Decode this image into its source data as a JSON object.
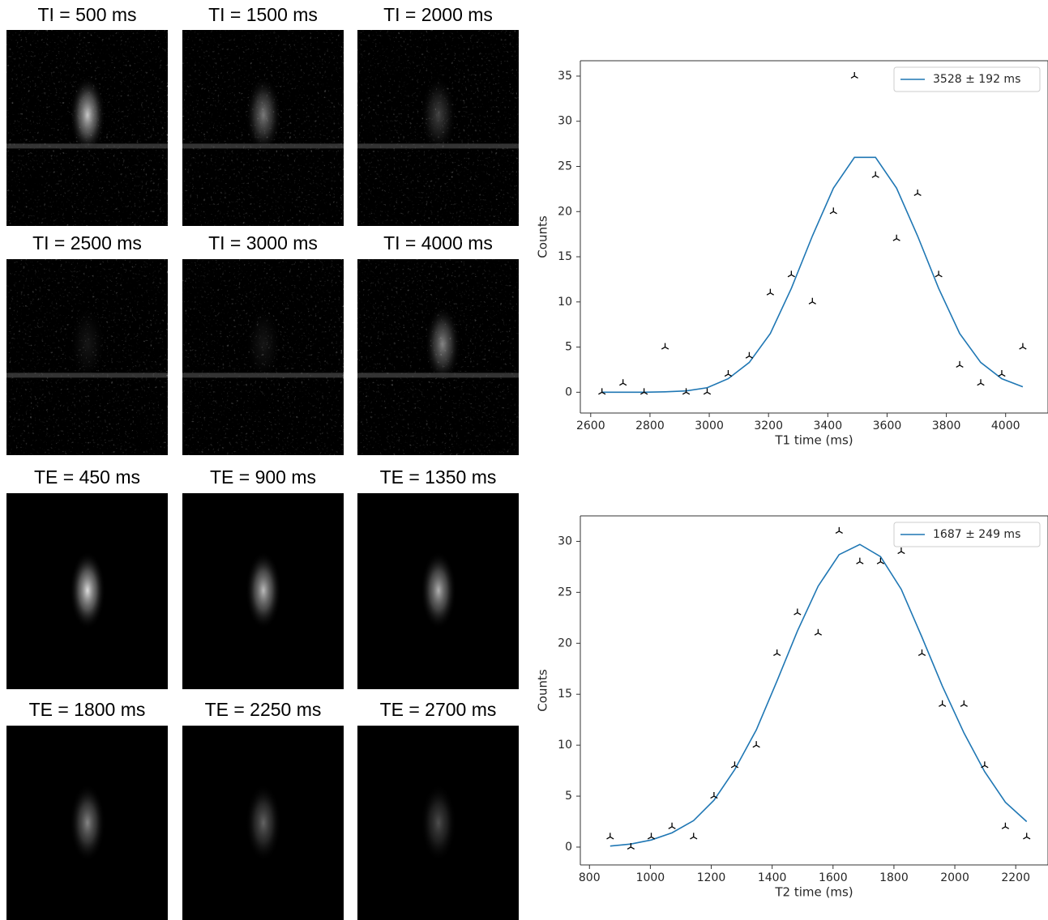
{
  "images": [
    {
      "title": "TI = 500 ms"
    },
    {
      "title": "TI = 1500 ms"
    },
    {
      "title": "TI = 2000 ms"
    },
    {
      "title": "TI = 2500 ms"
    },
    {
      "title": "TI = 3000 ms"
    },
    {
      "title": "TI = 4000 ms"
    },
    {
      "title": "TE = 450 ms"
    },
    {
      "title": "TE = 900 ms"
    },
    {
      "title": "TE = 1350 ms"
    },
    {
      "title": "TE = 1800 ms"
    },
    {
      "title": "TE = 2250 ms"
    },
    {
      "title": "TE = 2700 ms"
    }
  ],
  "chart_data": [
    {
      "type": "line",
      "x_label": "T1 time (ms)",
      "y_label": "Counts",
      "x": [
        2638,
        2709,
        2780,
        2851,
        2922,
        2993,
        3064,
        3135,
        3206,
        3277,
        3348,
        3419,
        3490,
        3561,
        3632,
        3703,
        3774,
        3845,
        3916,
        3987,
        4058
      ],
      "series": [
        {
          "type": "line",
          "name": "3528 ± 192 ms",
          "color": "#1f77b4",
          "values": [
            0,
            0,
            0,
            0.05,
            0.15,
            0.5,
            1.5,
            3.3,
            6.5,
            11.5,
            17.3,
            22.6,
            26,
            26,
            22.6,
            17.3,
            11.5,
            6.5,
            3.3,
            1.5,
            0.6
          ]
        },
        {
          "type": "scatter",
          "color": "#000000",
          "values": [
            0,
            1,
            0,
            5,
            0,
            0,
            2,
            4,
            11,
            13,
            10,
            20,
            35,
            24,
            17,
            22,
            13,
            3,
            1,
            2,
            5
          ]
        }
      ],
      "xlim": [
        2565,
        4143
      ],
      "ylim": [
        -2.3,
        36.7
      ],
      "xticks": [
        2600,
        2800,
        3000,
        3200,
        3400,
        3600,
        3800,
        4000
      ],
      "yticks": [
        0,
        5,
        10,
        15,
        20,
        25,
        30,
        35
      ],
      "legend": "upper right"
    },
    {
      "type": "line",
      "x_label": "T2 time (ms)",
      "y_label": "Counts",
      "x": [
        868,
        936,
        1003,
        1071,
        1142,
        1209,
        1277,
        1348,
        1416,
        1483,
        1551,
        1620,
        1688,
        1756,
        1824,
        1892,
        1959,
        2030,
        2098,
        2166,
        2236
      ],
      "series": [
        {
          "type": "line",
          "name": "1687 ± 249 ms",
          "color": "#1f77b4",
          "values": [
            0.1,
            0.3,
            0.7,
            1.4,
            2.6,
            4.6,
            7.6,
            11.5,
            16.3,
            21.2,
            25.6,
            28.7,
            29.7,
            28.5,
            25.3,
            20.6,
            15.8,
            11.2,
            7.4,
            4.4,
            2.5
          ]
        },
        {
          "type": "scatter",
          "color": "#000000",
          "values": [
            1,
            0,
            1,
            2,
            1,
            5,
            8,
            10,
            19,
            23,
            21,
            31,
            28,
            28,
            29,
            19,
            14,
            14,
            8,
            2,
            1
          ]
        }
      ],
      "xlim": [
        770,
        2306
      ],
      "ylim": [
        -1.75,
        32.5
      ],
      "xticks": [
        800,
        1000,
        1200,
        1400,
        1600,
        1800,
        2000,
        2200
      ],
      "yticks": [
        0,
        5,
        10,
        15,
        20,
        25,
        30
      ],
      "legend": "upper right"
    }
  ]
}
